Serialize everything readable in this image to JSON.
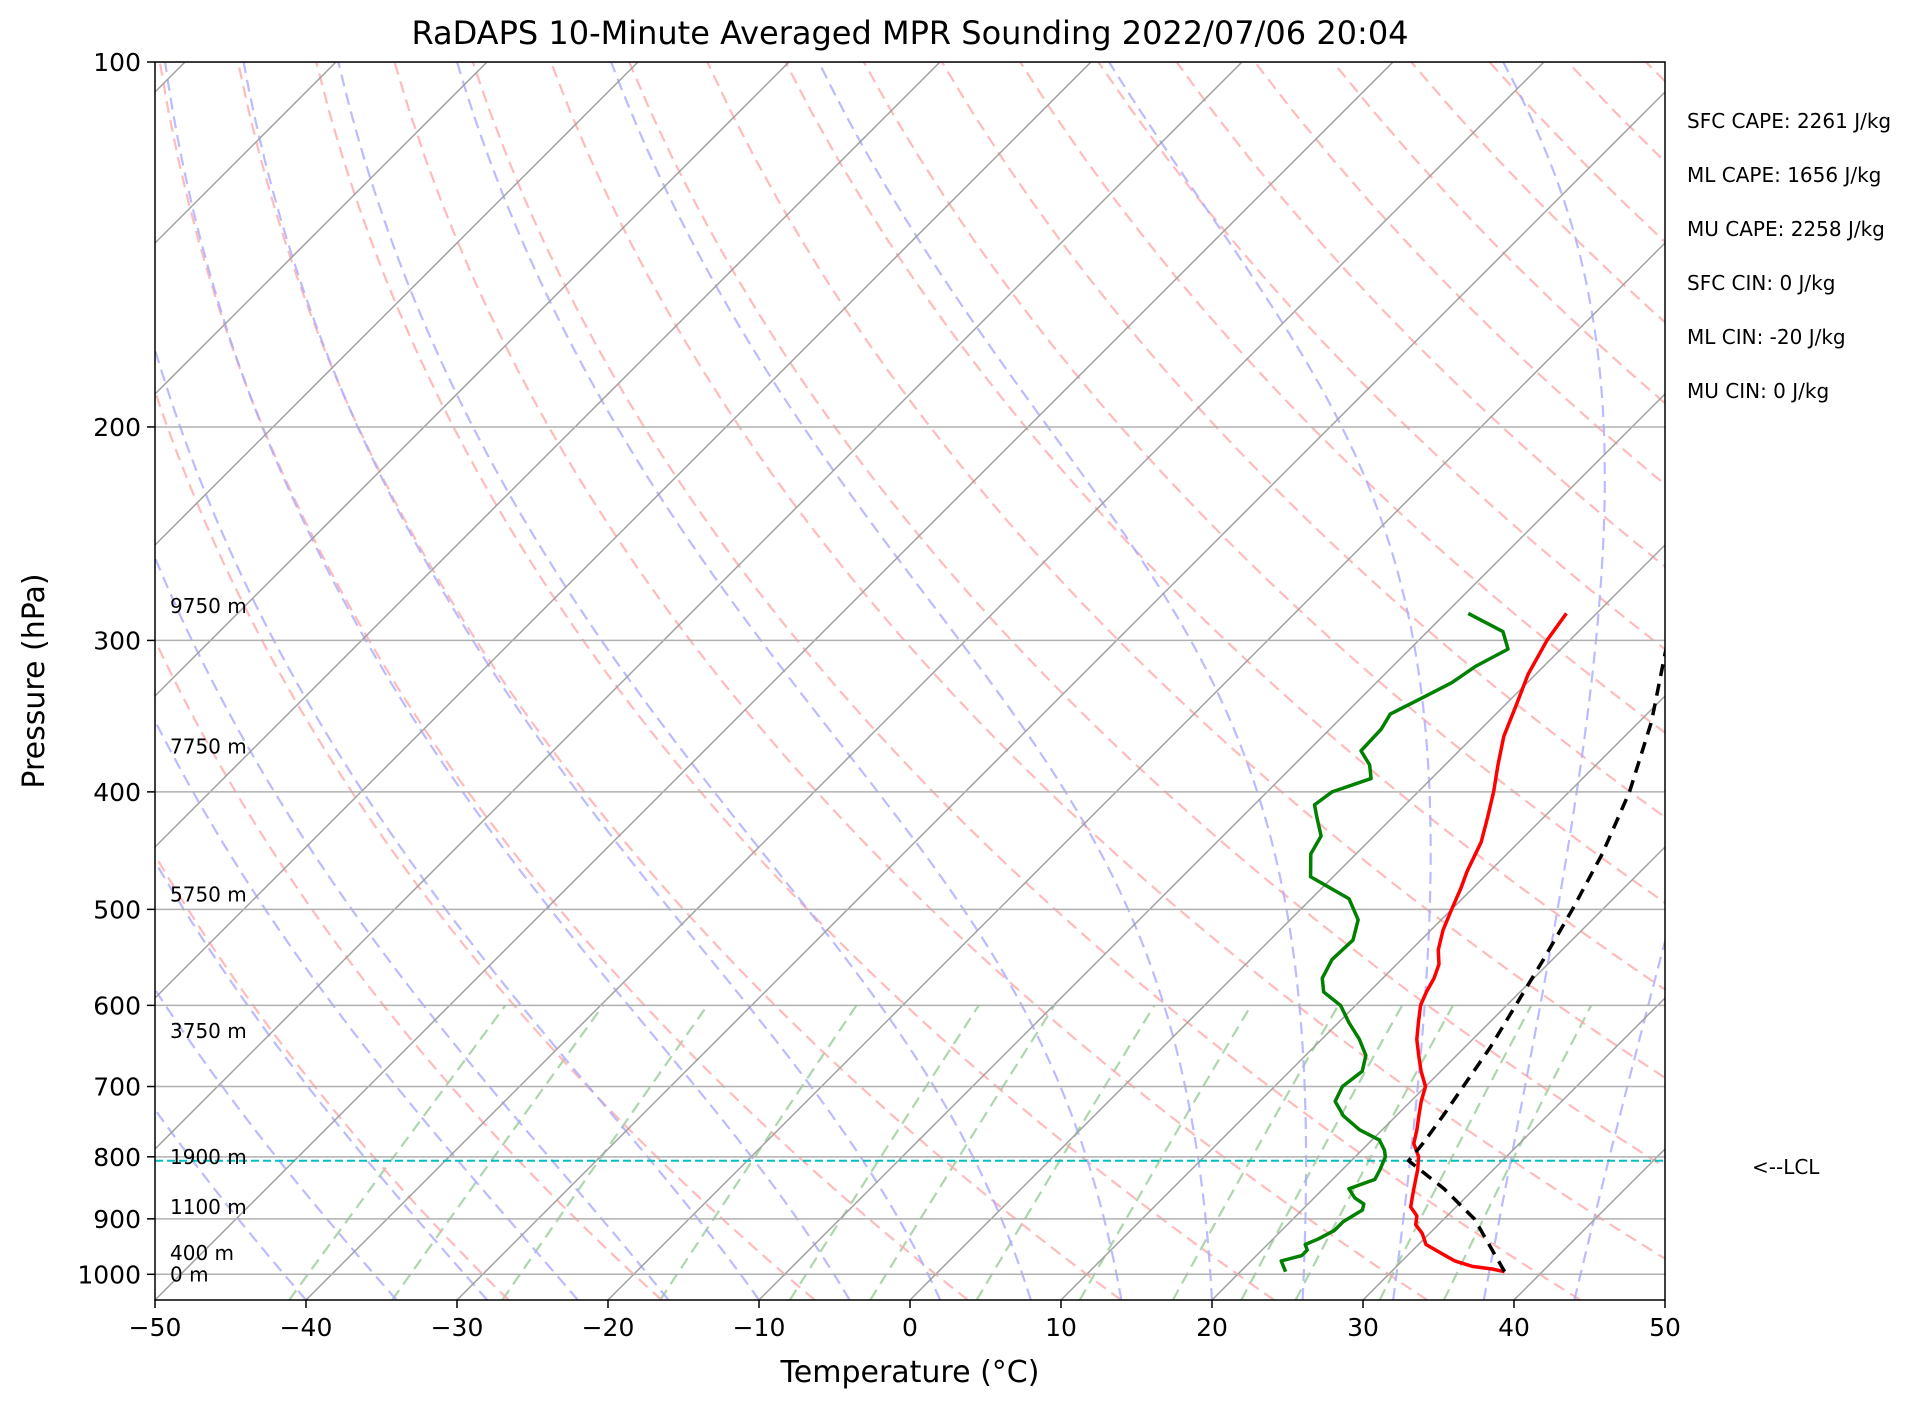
{
  "chart_data": {
    "type": "line",
    "title": "RaDAPS 10-Minute Averaged MPR Sounding 2022/07/06 20:04",
    "xlabel": "Temperature (°C)",
    "ylabel": "Pressure (hPa)",
    "xlim": [
      -50,
      50
    ],
    "ylim": [
      1050,
      100
    ],
    "y_scale": "log",
    "x_ticks": [
      "−50",
      "−40",
      "−30",
      "−20",
      "−10",
      "0",
      "10",
      "20",
      "30",
      "40",
      "50"
    ],
    "y_ticks": [
      "100",
      "200",
      "300",
      "400",
      "500",
      "600",
      "700",
      "800",
      "900",
      "1000"
    ],
    "grid": true,
    "skew": "T-logp",
    "colors": {
      "temperature": "#ff0000",
      "dewpoint": "#008000",
      "parcel": "#000000",
      "lcl": "#00bfbf",
      "dry_adiabat": "#ffaaaa",
      "moist_adiabat": "#aaaaff",
      "mixing_ratio": "#99cc99",
      "isotherm": "#a0a0a0"
    },
    "series": [
      {
        "key": "temperature",
        "pressure": [
          995,
          990,
          985,
          975,
          960,
          945,
          925,
          910,
          895,
          880,
          865,
          850,
          835,
          820,
          800,
          780,
          760,
          740,
          720,
          700,
          680,
          660,
          640,
          620,
          600,
          585,
          570,
          555,
          540,
          520,
          500,
          480,
          465,
          440,
          420,
          400,
          380,
          360,
          340,
          320,
          300,
          285
        ],
        "values": [
          37.5,
          36.5,
          35.0,
          33.5,
          32.0,
          30.5,
          29.5,
          28.5,
          28.0,
          27.0,
          26.5,
          26.0,
          25.5,
          25.0,
          24.2,
          23.0,
          22.3,
          21.5,
          20.7,
          20.0,
          18.7,
          17.5,
          16.3,
          15.3,
          14.3,
          13.8,
          13.4,
          12.8,
          11.8,
          10.8,
          10.0,
          9.2,
          8.5,
          7.5,
          6.3,
          5.0,
          3.5,
          2.0,
          0.8,
          -0.5,
          -1.5,
          -2.0
        ]
      },
      {
        "key": "dewpoint",
        "pressure": [
          995,
          985,
          975,
          965,
          955,
          945,
          935,
          920,
          905,
          885,
          875,
          865,
          850,
          835,
          820,
          800,
          790,
          775,
          760,
          740,
          720,
          700,
          680,
          660,
          640,
          620,
          600,
          585,
          570,
          550,
          530,
          510,
          490,
          470,
          450,
          435,
          420,
          410,
          400,
          390,
          380,
          370,
          355,
          345,
          335,
          325,
          315,
          305,
          295,
          285
        ],
        "values": [
          23.0,
          22.5,
          22.0,
          23.0,
          23.0,
          22.5,
          23.0,
          23.5,
          23.5,
          24.0,
          23.7,
          22.7,
          21.7,
          22.8,
          22.5,
          22.0,
          21.5,
          20.5,
          18.5,
          16.5,
          15.0,
          14.5,
          14.8,
          14.0,
          12.5,
          10.7,
          9.0,
          7.0,
          6.0,
          5.4,
          5.5,
          4.5,
          2.5,
          -1.5,
          -3.0,
          -3.5,
          -5.0,
          -6.0,
          -5.7,
          -4.0,
          -5.0,
          -6.5,
          -6.6,
          -7.0,
          -6.0,
          -5.0,
          -4.5,
          -3.5,
          -5.0,
          -8.5
        ]
      },
      {
        "key": "parcel",
        "pressure": [
          995,
          900,
          850,
          806,
          780,
          740,
          700,
          650,
          600,
          550,
          500,
          450,
          400,
          350,
          300,
          280
        ],
        "values": [
          37.5,
          32.0,
          28.0,
          23.8,
          23.6,
          23.1,
          22.5,
          21.7,
          20.6,
          19.4,
          18.0,
          16.3,
          14.0,
          10.8,
          6.5,
          4.5
        ]
      }
    ],
    "lcl": {
      "pressure": 806,
      "label": "<--LCL"
    },
    "heights": [
      {
        "label": "9750 m",
        "pressure": 281
      },
      {
        "label": "7750 m",
        "pressure": 367
      },
      {
        "label": "5750 m",
        "pressure": 486
      },
      {
        "label": "3750 m",
        "pressure": 630
      },
      {
        "label": "1900 m",
        "pressure": 800
      },
      {
        "label": "1100 m",
        "pressure": 880
      },
      {
        "label": "400 m",
        "pressure": 960
      },
      {
        "label": "0 m",
        "pressure": 1000
      }
    ],
    "stats": [
      {
        "label": "SFC CAPE: 2261 J/kg"
      },
      {
        "label": "ML CAPE: 1656 J/kg"
      },
      {
        "label": "MU CAPE: 2258 J/kg"
      },
      {
        "label": "SFC CIN: 0 J/kg"
      },
      {
        "label": "ML CIN: -20 J/kg"
      },
      {
        "label": "MU CIN: 0 J/kg"
      }
    ]
  }
}
